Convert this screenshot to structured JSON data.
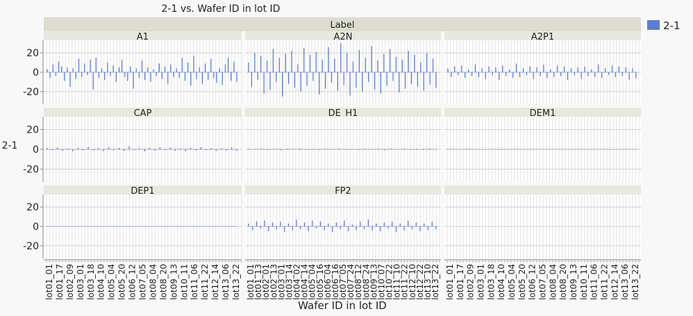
{
  "chart_data": {
    "type": "bar",
    "title": "2-1 vs. Wafer ID in lot ID",
    "group_header": "Label",
    "xlabel": "Wafer ID in lot ID",
    "ylabel": "2-1",
    "ylim": [
      -33,
      33
    ],
    "yticks": [
      20,
      0,
      -20
    ],
    "grid": true,
    "legend": {
      "placement": "right",
      "entries": [
        "2-1"
      ]
    },
    "colors": {
      "series": "#5b7bd5",
      "header": "#dcdcd0",
      "panel_header": "#e8e8e0",
      "grid": "#dcdcdc"
    },
    "x_tick_labels": [
      [
        "lot01_01",
        "lot01_17",
        "lot02_09",
        "lot03_01",
        "lot03_18",
        "lot04_10",
        "lot05_04",
        "lot05_20",
        "lot06_12",
        "lot07_05",
        "lot08_04",
        "lot08_20",
        "lot09_13",
        "lot10_11",
        "lot11_06",
        "lot11_22",
        "lot12_14",
        "lot13_06",
        "lot13_22"
      ],
      [
        "lot01_01",
        "lot01_13",
        "lot02_01",
        "lot02_13",
        "lot03_01",
        "lot03_14",
        "lot04_02",
        "lot04_14",
        "lot05_04",
        "lot05_16",
        "lot06_04",
        "lot06_16",
        "lot07_05",
        "lot07_24",
        "lot08_12",
        "lot08_24",
        "lot09_13",
        "lot10_07",
        "lot10_22",
        "lot11_10",
        "lot11_22",
        "lot12_10",
        "lot12_22",
        "lot13_10",
        "lot13_22"
      ],
      [
        "lot01_01",
        "lot01_17",
        "lot02_09",
        "lot03_01",
        "lot03_18",
        "lot04_10",
        "lot05_04",
        "lot05_20",
        "lot06_12",
        "lot07_05",
        "lot08_04",
        "lot08_20",
        "lot09_13",
        "lot10_11",
        "lot11_06",
        "lot11_22",
        "lot12_14",
        "lot13_06",
        "lot13_22"
      ]
    ],
    "panels": [
      {
        "label": "A1",
        "values": [
          3,
          -6,
          8,
          -4,
          11,
          6,
          -9,
          5,
          -15,
          4,
          -7,
          14,
          -5,
          9,
          -3,
          13,
          -18,
          15,
          -6,
          4,
          -8,
          10,
          -4,
          7,
          -10,
          5,
          13,
          -5,
          -9,
          6,
          -17,
          4,
          -6,
          12,
          -8,
          5,
          -10,
          3,
          -4,
          9,
          -7,
          6,
          -12,
          8,
          -5,
          4,
          -6,
          15,
          -9,
          10,
          -14,
          17,
          -7,
          5,
          -12,
          9,
          -8,
          14,
          -6,
          -11,
          4,
          -13,
          8,
          15,
          -9,
          11,
          -10
        ]
      },
      {
        "label": "A2N",
        "values": [
          10,
          -15,
          20,
          -8,
          17,
          -22,
          12,
          -18,
          24,
          -10,
          15,
          -25,
          19,
          -12,
          22,
          -16,
          8,
          -20,
          25,
          -14,
          18,
          -9,
          21,
          -23,
          13,
          -17,
          26,
          -11,
          14,
          -19,
          30,
          -13,
          20,
          -24,
          11,
          -16,
          23,
          -20,
          15,
          -10,
          27,
          -18,
          12,
          -22,
          19,
          -14,
          24,
          -9,
          16,
          -21,
          13,
          -17,
          22,
          -12,
          18,
          -15,
          10,
          -19,
          20,
          -13,
          14,
          -16
        ]
      },
      {
        "label": "A2P1",
        "values": [
          4,
          -5,
          6,
          -3,
          7,
          -6,
          3,
          -4,
          8,
          -5,
          4,
          -7,
          6,
          -3,
          5,
          -8,
          7,
          -4,
          3,
          -6,
          9,
          -5,
          4,
          -3,
          6,
          -7,
          5,
          -4,
          8,
          -6,
          3,
          -5,
          7,
          -4,
          6,
          -8,
          4,
          -3,
          5,
          -7,
          6,
          -4,
          3,
          -5,
          8,
          -6,
          4,
          -3,
          7,
          -5,
          6,
          -4,
          5,
          -8,
          4,
          -6
        ]
      },
      {
        "label": "CAP",
        "values": [
          1.5,
          -1,
          2,
          -1.5,
          1,
          -2,
          1.5,
          -1,
          2.5,
          -1.2,
          1,
          -1.8,
          2,
          -1,
          1.4,
          -1.6,
          3,
          -1,
          1.2,
          -2,
          1.5,
          -1.3,
          2,
          -1,
          1.8,
          -1.5,
          1,
          -2,
          1.6,
          -1.2,
          2.2,
          -1,
          1.4,
          -1.7,
          1,
          -1.3,
          2,
          -1.5
        ]
      },
      {
        "label": "DE_H1",
        "values": [
          0.6,
          -0.5,
          0.8,
          -0.6,
          0.5,
          -0.9,
          0.7,
          -0.4,
          1,
          -0.6,
          0.5,
          -0.8,
          0.7,
          -0.5,
          0.9,
          -0.6,
          0.5,
          -0.7,
          0.8,
          -0.5,
          0.6,
          -0.9,
          0.7,
          -0.4,
          0.8,
          -0.6,
          0.5,
          -0.7,
          0.9,
          -0.5
        ]
      },
      {
        "label": "DEM1",
        "values": [
          0.2,
          -0.2,
          0.3,
          -0.1,
          0.2,
          -0.3,
          0.1,
          -0.2,
          0.3,
          -0.2,
          0.2,
          -0.1,
          0.3,
          -0.2,
          0.1,
          -0.3,
          0.2,
          -0.2
        ]
      },
      {
        "label": "DEP1",
        "values": [
          0.3,
          -0.3,
          0.4,
          -0.2,
          0.3,
          -0.4,
          0.2,
          -0.3,
          0.4,
          -0.3,
          0.3,
          -0.2,
          0.4,
          -0.3,
          0.2,
          -0.4,
          0.3,
          -0.3,
          0.4,
          -0.2
        ]
      },
      {
        "label": "FP2",
        "values": [
          3,
          -4,
          5,
          -2,
          6,
          -5,
          4,
          -3,
          5,
          -6,
          3,
          -4,
          7,
          -3,
          4,
          -5,
          6,
          -2,
          5,
          -4,
          3,
          -6,
          4,
          -3,
          6,
          -5,
          2,
          -4,
          5,
          -3,
          7,
          -4,
          3,
          -5,
          4,
          -2,
          5,
          -6,
          3,
          -4,
          6,
          -3,
          4,
          -5,
          3,
          -4,
          5,
          -3
        ]
      },
      {
        "label": "",
        "values": []
      }
    ]
  }
}
